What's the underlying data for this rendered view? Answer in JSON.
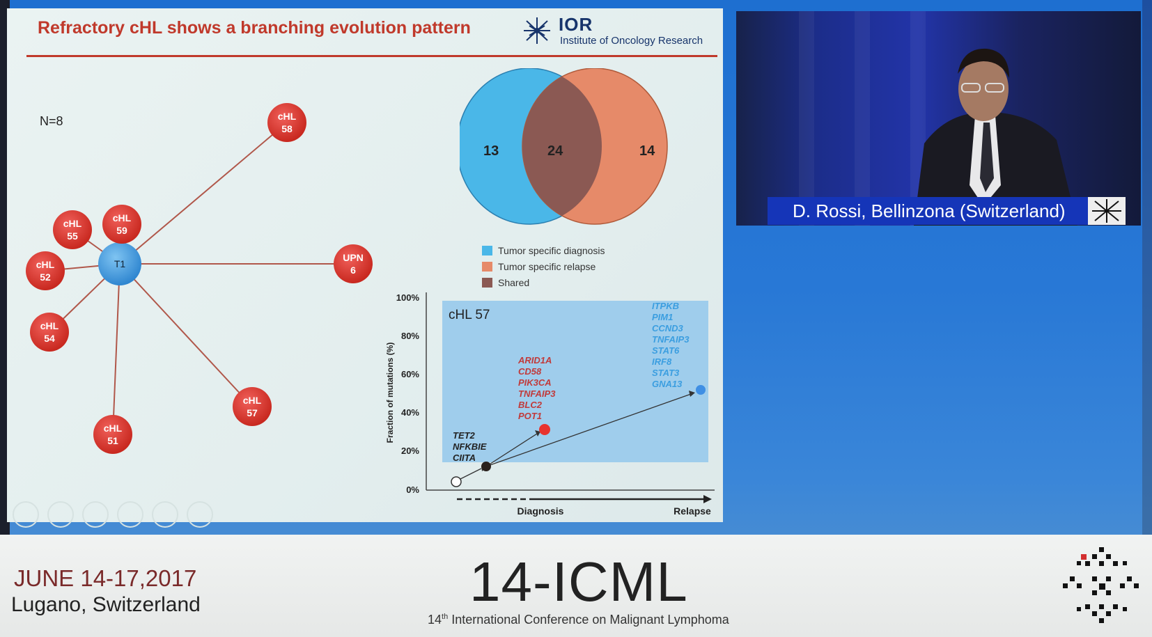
{
  "slide": {
    "title": "Refractory cHL shows a branching evolution pattern",
    "logo_word": "IOR",
    "logo_sub": "Institute of Oncology Research",
    "n_label": "N=8",
    "tree": {
      "center": "T1",
      "nodes": [
        {
          "id": "chl58",
          "l1": "cHL",
          "l2": "58"
        },
        {
          "id": "chl59",
          "l1": "cHL",
          "l2": "59"
        },
        {
          "id": "chl55",
          "l1": "cHL",
          "l2": "55"
        },
        {
          "id": "chl52",
          "l1": "cHL",
          "l2": "52"
        },
        {
          "id": "chl54",
          "l1": "cHL",
          "l2": "54"
        },
        {
          "id": "chl51",
          "l1": "cHL",
          "l2": "51"
        },
        {
          "id": "chl57",
          "l1": "cHL",
          "l2": "57"
        },
        {
          "id": "upn6",
          "l1": "UPN",
          "l2": "6"
        }
      ]
    },
    "venn": {
      "left_value": "13",
      "shared_value": "24",
      "right_value": "14",
      "legend": [
        "Tumor specific diagnosis",
        "Tumor specific relapse",
        "Shared"
      ],
      "colors": {
        "diagnosis": "#4ab7e8",
        "relapse": "#e68a69",
        "shared": "#8b5953"
      }
    },
    "plot": {
      "panel_label": "cHL 57",
      "ylabel": "Fraction of mutations (%)",
      "yticks": [
        "0%",
        "20%",
        "40%",
        "60%",
        "80%",
        "100%"
      ],
      "xlabel_left": "Diagnosis",
      "xlabel_right": "Relapse",
      "dark_genes": [
        "TET2",
        "NFKBIE",
        "CIITA"
      ],
      "red_genes": [
        "ARID1A",
        "CD58",
        "PIK3CA",
        "TNFAIP3",
        "BLC2",
        "POT1"
      ],
      "blue_genes": [
        "ITPKB",
        "PIM1",
        "CCND3",
        "TNFAIP3",
        "STAT6",
        "IRF8",
        "STAT3",
        "GNA13"
      ]
    }
  },
  "speaker": {
    "nameplate": "D. Rossi, Bellinzona (Switzerland)"
  },
  "footer": {
    "date": "JUNE 14-17,2017",
    "location": "Lugano, Switzerland",
    "event": "14-ICML",
    "subtitle_sup": "th",
    "subtitle_num": "14",
    "subtitle_rest": " International Conference on Malignant Lymphoma"
  }
}
